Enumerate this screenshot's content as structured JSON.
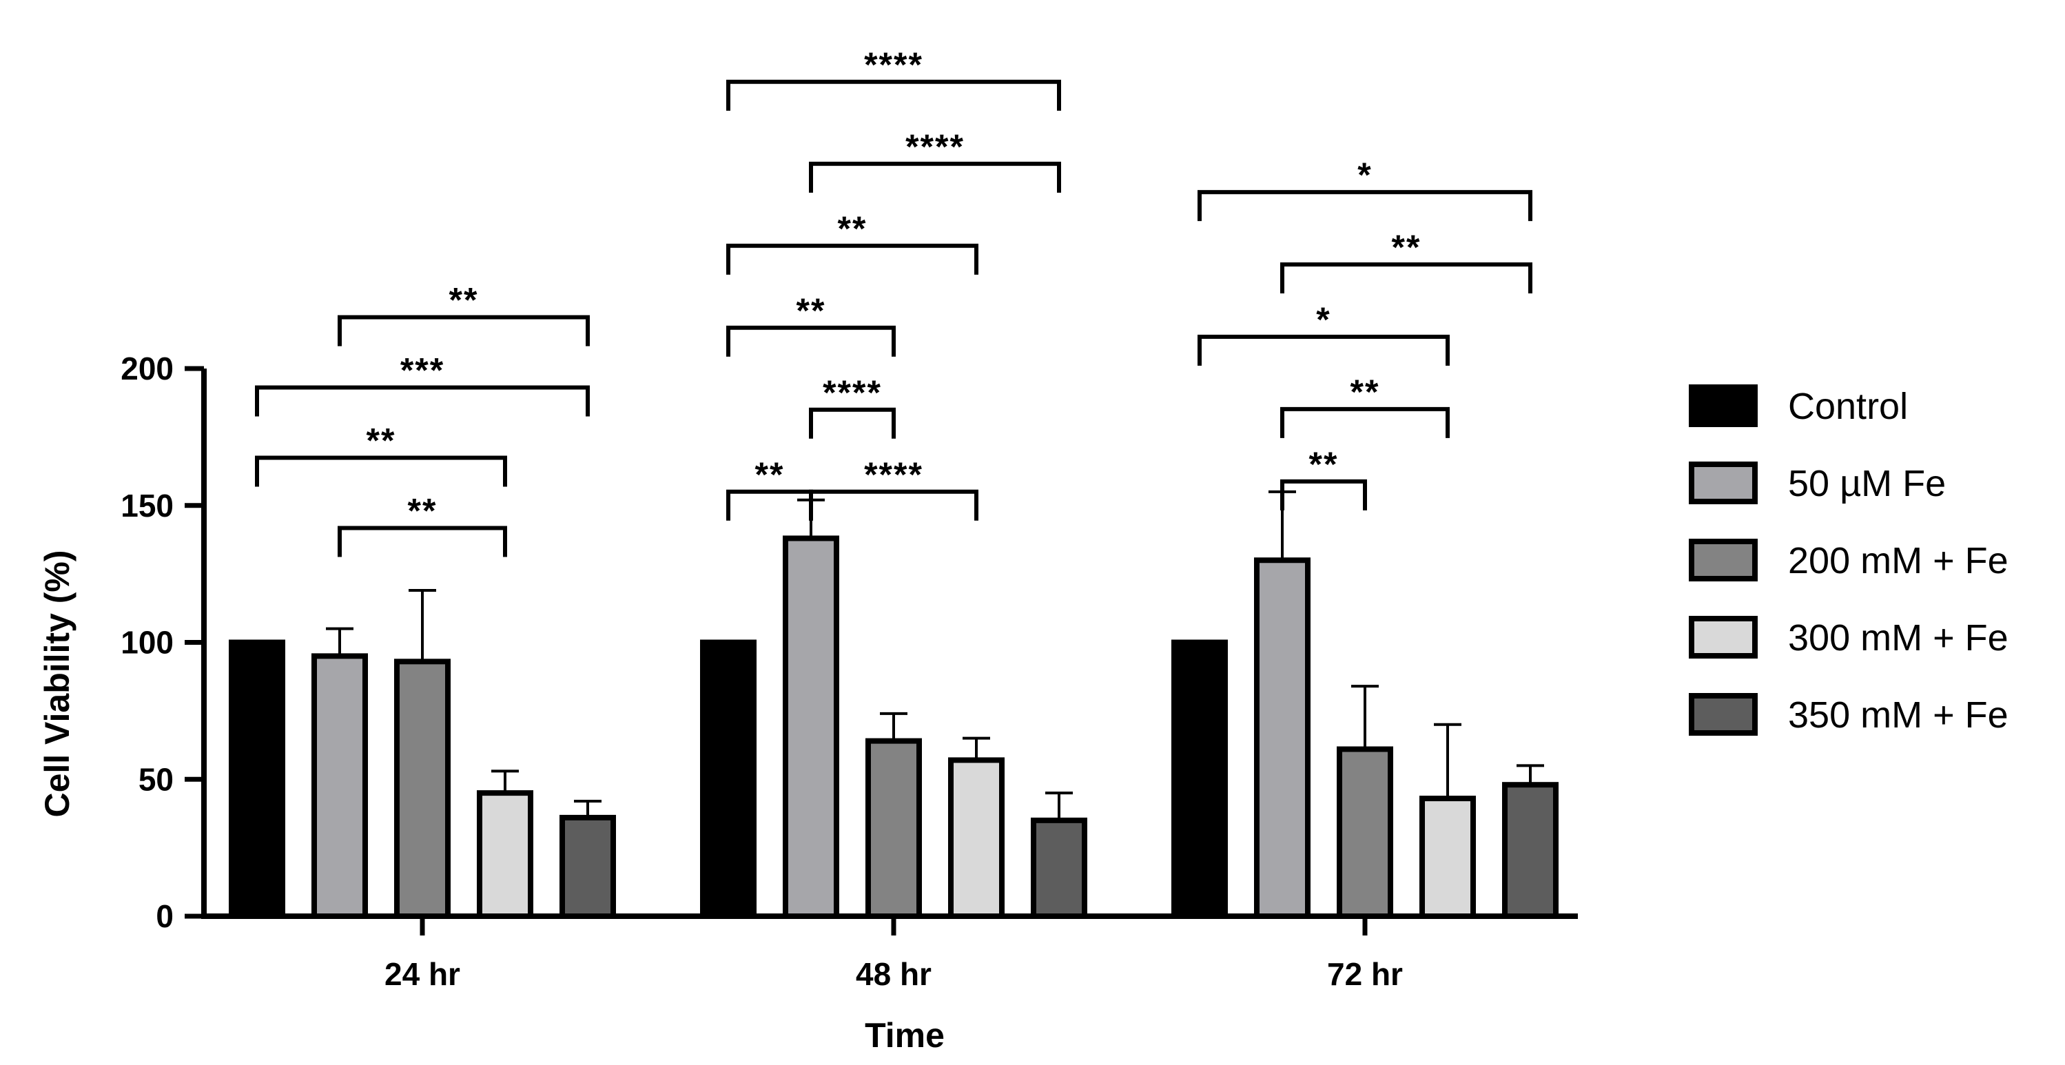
{
  "chart_data": {
    "type": "bar",
    "title": "",
    "xlabel": "Time",
    "ylabel": "Cell Viability (%)",
    "ylim": [
      0,
      200
    ],
    "yticks": [
      0,
      50,
      100,
      150,
      200
    ],
    "categories": [
      "24 hr",
      "48 hr",
      "72 hr"
    ],
    "legend_position": "right",
    "series": [
      {
        "name": "Control",
        "color": "#000000",
        "values": [
          100,
          100,
          100
        ],
        "errors": [
          0,
          0,
          0
        ]
      },
      {
        "name": "50 µM Fe",
        "color": "#a6a6aa",
        "values": [
          95,
          138,
          130
        ],
        "errors": [
          10,
          14,
          25
        ]
      },
      {
        "name": "200 mM + Fe",
        "color": "#838383",
        "values": [
          93,
          64,
          61
        ],
        "errors": [
          26,
          10,
          23
        ]
      },
      {
        "name": "300 mM + Fe",
        "color": "#d9d9d9",
        "values": [
          45,
          57,
          43
        ],
        "errors": [
          8,
          8,
          27
        ]
      },
      {
        "name": "350 mM + Fe",
        "color": "#5d5d5d",
        "values": [
          36,
          35,
          48
        ],
        "errors": [
          6,
          10,
          7
        ]
      }
    ],
    "significance": [
      {
        "category": 0,
        "from": 1,
        "to": 3,
        "level": 0,
        "label": "**"
      },
      {
        "category": 0,
        "from": 0,
        "to": 3,
        "level": 1,
        "label": "**"
      },
      {
        "category": 0,
        "from": 0,
        "to": 4,
        "level": 2,
        "label": "***"
      },
      {
        "category": 0,
        "from": 1,
        "to": 4,
        "level": 3,
        "label": "**"
      },
      {
        "category": 1,
        "from": 0,
        "to": 1,
        "level": 0,
        "label": "**"
      },
      {
        "category": 1,
        "from": 1,
        "to": 3,
        "level": 0,
        "label": "****"
      },
      {
        "category": 1,
        "from": 1,
        "to": 2,
        "level": 1,
        "label": "****"
      },
      {
        "category": 1,
        "from": 0,
        "to": 2,
        "level": 2,
        "label": "**"
      },
      {
        "category": 1,
        "from": 0,
        "to": 3,
        "level": 3,
        "label": "**"
      },
      {
        "category": 1,
        "from": 1,
        "to": 4,
        "level": 4,
        "label": "****"
      },
      {
        "category": 1,
        "from": 0,
        "to": 4,
        "level": 5,
        "label": "****"
      },
      {
        "category": 2,
        "from": 1,
        "to": 2,
        "level": 0,
        "label": "**"
      },
      {
        "category": 2,
        "from": 1,
        "to": 3,
        "level": 1,
        "label": "**"
      },
      {
        "category": 2,
        "from": 0,
        "to": 3,
        "level": 2,
        "label": "*"
      },
      {
        "category": 2,
        "from": 1,
        "to": 4,
        "level": 3,
        "label": "**"
      },
      {
        "category": 2,
        "from": 0,
        "to": 4,
        "level": 4,
        "label": "*"
      }
    ]
  }
}
